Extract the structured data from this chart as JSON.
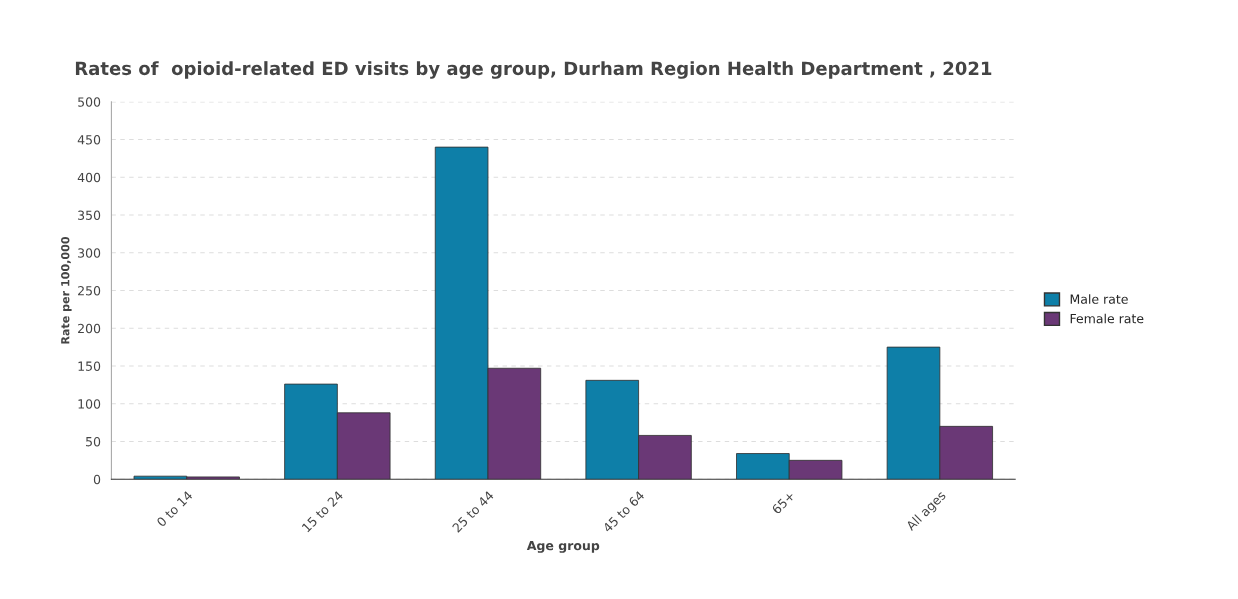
{
  "chart_data": {
    "type": "bar",
    "title": "Rates of  opioid-related ED visits by age group, Durham Region Health Department , 2021",
    "xlabel": "Age group",
    "ylabel": "Rate per 100,000",
    "categories": [
      "0 to 14",
      "15 to 24",
      "25 to 44",
      "45 to 64",
      "65+",
      "All ages"
    ],
    "series": [
      {
        "name": "Male rate",
        "color": "#0e7fa8",
        "values": [
          4,
          126,
          440,
          131,
          34,
          175
        ]
      },
      {
        "name": "Female rate",
        "color": "#6a3876",
        "values": [
          3,
          88,
          147,
          58,
          25,
          70
        ]
      }
    ],
    "ylim": [
      0,
      500
    ],
    "yticks": [
      0,
      50,
      100,
      150,
      200,
      250,
      300,
      350,
      400,
      450,
      500
    ],
    "grid": "y",
    "legend": "right"
  }
}
